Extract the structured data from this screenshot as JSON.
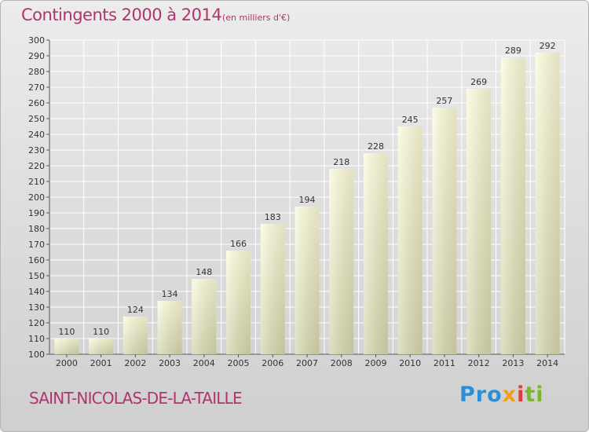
{
  "header": {
    "title": "Contingents 2000 à 2014",
    "subtitle": "(en milliers d'€)"
  },
  "footer": {
    "commune": "SAINT-NICOLAS-DE-LA-TAILLE",
    "logo": [
      "Pro",
      "x",
      "i",
      "ti"
    ]
  },
  "colors": {
    "title": "#b0346e",
    "bar_top": "#fbfbdb",
    "bar_bottom": "#cfcfa8",
    "grid": "#ffffff"
  },
  "chart_data": {
    "type": "bar",
    "title": "Contingents 2000 à 2014",
    "subtitle": "(en milliers d'€)",
    "xlabel": "",
    "ylabel": "",
    "categories": [
      "2000",
      "2001",
      "2002",
      "2003",
      "2004",
      "2005",
      "2006",
      "2007",
      "2008",
      "2009",
      "2010",
      "2011",
      "2012",
      "2013",
      "2014"
    ],
    "values": [
      110,
      110,
      124,
      134,
      148,
      166,
      183,
      194,
      218,
      228,
      245,
      257,
      269,
      289,
      292
    ],
    "ylim": [
      100,
      300
    ],
    "yticks": [
      100,
      110,
      120,
      130,
      140,
      150,
      160,
      170,
      180,
      190,
      200,
      210,
      220,
      230,
      240,
      250,
      260,
      270,
      280,
      290,
      300
    ],
    "grid": true,
    "legend": "none"
  }
}
